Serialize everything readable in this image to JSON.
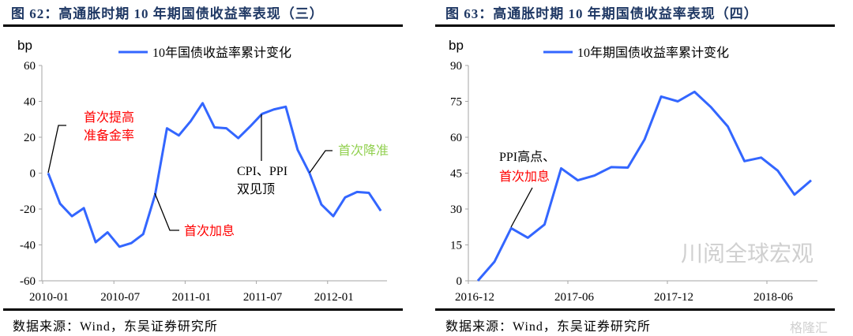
{
  "chart_data": [
    {
      "type": "line",
      "title": "图 62：高通胀时期 10 年期国债收益率表现（三）",
      "ylabel": "bp",
      "ylim": [
        -60,
        60
      ],
      "yticks": [
        -60,
        -40,
        -20,
        0,
        20,
        40,
        60
      ],
      "x_start": "2010-01",
      "xtick_labels": [
        "2010-01",
        "2010-07",
        "2011-01",
        "2011-07",
        "2012-01"
      ],
      "legend": "top",
      "series": [
        {
          "name": "10年国债收益率累计变化",
          "color": "#3366ff",
          "values": [
            0,
            -17,
            -24,
            -19.5,
            -38.5,
            -33,
            -41,
            -39,
            -34,
            -12,
            25,
            21,
            29,
            39,
            25.5,
            25,
            19.5,
            26,
            33,
            35.5,
            37,
            13,
            0,
            -17.5,
            -24,
            -13.5,
            -10.5,
            -11,
            -21
          ]
        }
      ],
      "annotations": [
        {
          "text": [
            "首次提高",
            "准备金率"
          ],
          "color": "#ff0000",
          "point_index": 0
        },
        {
          "text": [
            "CPI、PPI",
            "双见顶"
          ],
          "color": "#000000",
          "point_index": 18
        },
        {
          "text": [
            "首次加息"
          ],
          "color": "#ff0000",
          "point_index": 9
        },
        {
          "text": [
            "首次降准"
          ],
          "color": "#92d050",
          "point_index": 22
        }
      ],
      "source": "数据来源：Wind，东吴证券研究所"
    },
    {
      "type": "line",
      "title": "图 63：高通胀时期 10 年期国债收益率表现（四）",
      "ylabel": "bp",
      "ylim": [
        0,
        90
      ],
      "yticks": [
        0,
        15,
        30,
        45,
        60,
        75,
        90
      ],
      "x_start": "2016-12",
      "xtick_labels": [
        "2016-12",
        "2017-06",
        "2017-12",
        "2018-06"
      ],
      "legend": "top",
      "series": [
        {
          "name": "10年期国债收益率累计变化",
          "color": "#3366ff",
          "values": [
            0,
            8,
            22,
            18,
            23.5,
            47,
            42,
            44,
            47.5,
            47.3,
            59,
            77,
            75,
            79,
            72.5,
            64.5,
            50,
            51.5,
            46,
            36,
            42
          ]
        }
      ],
      "annotations": [
        {
          "text": [
            "PPI高点、",
            "首次加息"
          ],
          "colors": [
            "#000000",
            "#ff0000"
          ],
          "point_index": 2
        }
      ],
      "source": "数据来源：Wind，东吴证券研究所"
    }
  ],
  "watermarks": [
    "川阅全球宏观",
    "格隆汇"
  ]
}
